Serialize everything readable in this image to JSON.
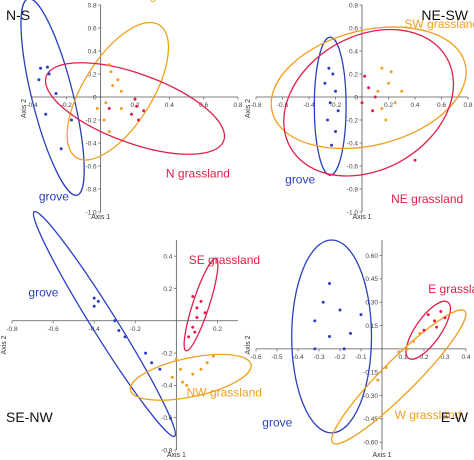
{
  "colors": {
    "grove": "#2b3fbf",
    "orange": "#f0a020",
    "red": "#e0204a",
    "axis": "#555555"
  },
  "chart_data": [
    {
      "type": "scatter",
      "title": "N-S",
      "xlabel": "Axis 1",
      "ylabel": "Axis 2",
      "xlim": [
        -0.4,
        0.8
      ],
      "ylim": [
        -1.0,
        0.8
      ],
      "xticks": [
        -0.4,
        -0.2,
        0.2,
        0.4,
        0.6,
        0.8
      ],
      "xtick_labels": [
        "-0.4",
        "-0.2",
        "0.2",
        "0.4",
        "0.6",
        "0.8"
      ],
      "yticks": [
        0.8,
        0.6,
        0.4,
        0.2,
        0,
        -0.2,
        -0.4,
        -0.6,
        -0.8,
        -1.0
      ],
      "ytick_labels": [
        "0.8",
        "0.6",
        "0.4",
        "0.2",
        "0",
        "-0.2",
        "-0.4",
        "-0.6",
        "-0.8",
        "-1.0"
      ],
      "series": [
        {
          "name": "grove",
          "color": "#2b3fbf",
          "points": [
            [
              -0.35,
              0.25
            ],
            [
              -0.31,
              0.26
            ],
            [
              -0.3,
              0.2
            ],
            [
              -0.36,
              0.15
            ],
            [
              -0.26,
              0.03
            ],
            [
              -0.32,
              -0.15
            ],
            [
              -0.23,
              -0.45
            ],
            [
              -0.17,
              -0.2
            ]
          ]
        },
        {
          "name": "S grassland",
          "color": "#f0a020",
          "points": [
            [
              0.05,
              0.28
            ],
            [
              0.06,
              0.22
            ],
            [
              0.1,
              0.15
            ],
            [
              0.07,
              0.1
            ],
            [
              0.12,
              0.05
            ],
            [
              0.03,
              -0.05
            ],
            [
              -0.02,
              -0.1
            ],
            [
              0.02,
              -0.2
            ],
            [
              0.05,
              -0.3
            ],
            [
              0.12,
              -0.1
            ]
          ]
        },
        {
          "name": "N grassland",
          "color": "#e0204a",
          "points": [
            [
              0.2,
              -0.02
            ],
            [
              0.21,
              -0.08
            ],
            [
              0.25,
              -0.12
            ],
            [
              0.18,
              -0.15
            ],
            [
              0.22,
              -0.2
            ],
            [
              0.05,
              -0.1
            ]
          ]
        }
      ],
      "ellipses": [
        {
          "series": "grove",
          "cx": -0.28,
          "cy": 0.0,
          "rx": 0.12,
          "ry": 0.88,
          "angle_deg": -14
        },
        {
          "series": "S grassland",
          "cx": 0.1,
          "cy": 0.05,
          "rx": 0.2,
          "ry": 0.68,
          "angle_deg": 32
        },
        {
          "series": "N grassland",
          "cx": 0.2,
          "cy": -0.1,
          "rx": 0.55,
          "ry": 0.3,
          "angle_deg": 20
        }
      ],
      "labels": [
        {
          "text": "S grassland",
          "color": "#f0a020",
          "x": 0.22,
          "y": 0.85
        },
        {
          "text": "N grassland",
          "color": "#e0204a",
          "x": 0.38,
          "y": -0.7
        },
        {
          "text": "grove",
          "color": "#2b3fbf",
          "x": -0.36,
          "y": -0.9
        }
      ]
    },
    {
      "type": "scatter",
      "title": "NE-SW",
      "xlabel": "Axis 1",
      "ylabel": "Axis 2",
      "xlim": [
        -0.8,
        0.8
      ],
      "ylim": [
        -1.0,
        0.8
      ],
      "xticks": [
        -0.8,
        -0.6,
        -0.4,
        -0.2,
        0.2,
        0.4,
        0.6,
        0.8
      ],
      "xtick_labels": [
        "-0.8",
        "-0.6",
        "-0.4",
        "-0.2",
        "0.2",
        "0.4",
        "0.6",
        "0.8"
      ],
      "yticks": [
        0.8,
        0.6,
        0.4,
        0.2,
        0,
        -0.2,
        -0.4,
        -0.6,
        -0.8,
        -1.0
      ],
      "ytick_labels": [
        "0.8",
        "0.6",
        "0.4",
        "0.2",
        "0",
        "-0.2",
        "-0.4",
        "-0.6",
        "-0.8",
        "-1.0"
      ],
      "series": [
        {
          "name": "grove",
          "color": "#2b3fbf",
          "points": [
            [
              -0.25,
              0.25
            ],
            [
              -0.22,
              0.2
            ],
            [
              -0.28,
              0.12
            ],
            [
              -0.2,
              0.05
            ],
            [
              -0.24,
              -0.05
            ],
            [
              -0.18,
              -0.12
            ],
            [
              -0.26,
              -0.2
            ],
            [
              -0.2,
              -0.3
            ],
            [
              -0.23,
              -0.42
            ]
          ]
        },
        {
          "name": "SW grassland",
          "color": "#f0a020",
          "points": [
            [
              0.15,
              0.25
            ],
            [
              0.22,
              0.22
            ],
            [
              0.2,
              0.12
            ],
            [
              0.12,
              0.05
            ],
            [
              0.3,
              0.05
            ],
            [
              0.25,
              -0.05
            ],
            [
              0.15,
              -0.1
            ],
            [
              0.18,
              -0.2
            ]
          ]
        },
        {
          "name": "NE grassland",
          "color": "#e0204a",
          "points": [
            [
              0.02,
              0.18
            ],
            [
              0.05,
              0.08
            ],
            [
              0.1,
              0.0
            ],
            [
              0.0,
              -0.05
            ],
            [
              0.08,
              -0.12
            ],
            [
              0.4,
              -0.55
            ]
          ]
        }
      ],
      "ellipses": [
        {
          "series": "grove",
          "cx": -0.24,
          "cy": -0.08,
          "rx": 0.12,
          "ry": 0.6,
          "angle_deg": 0
        },
        {
          "series": "SW grassland",
          "cx": 0.05,
          "cy": 0.08,
          "rx": 0.75,
          "ry": 0.5,
          "angle_deg": -14
        },
        {
          "series": "NE grassland",
          "cx": 0.05,
          "cy": -0.05,
          "rx": 0.68,
          "ry": 0.58,
          "angle_deg": -30
        }
      ],
      "labels": [
        {
          "text": "SW grassland",
          "color": "#f0a020",
          "x": 0.32,
          "y": 0.6
        },
        {
          "text": "NE grassland",
          "color": "#e0204a",
          "x": 0.22,
          "y": -0.92
        },
        {
          "text": "grove",
          "color": "#2b3fbf",
          "x": -0.58,
          "y": -0.75
        }
      ]
    },
    {
      "type": "scatter",
      "title": "SE-NW",
      "xlabel": "Axis 1",
      "ylabel": "Axis 2",
      "xlim": [
        -0.8,
        0.3
      ],
      "ylim": [
        -0.8,
        0.5
      ],
      "xticks": [
        -0.8,
        -0.6,
        -0.4,
        -0.2,
        0.2
      ],
      "xtick_labels": [
        "-0.8",
        "-0.6",
        "-0.4",
        "-0.2",
        "0.2"
      ],
      "yticks": [
        0.4,
        0.2,
        -0.2,
        -0.4,
        -0.6,
        -0.8
      ],
      "ytick_labels": [
        "0.4",
        "0.2",
        "-0.2",
        "-0.4",
        "-0.6",
        "-0.8"
      ],
      "series": [
        {
          "name": "grove",
          "color": "#2b3fbf",
          "points": [
            [
              -0.4,
              0.14
            ],
            [
              -0.38,
              0.12
            ],
            [
              -0.4,
              0.09
            ],
            [
              -0.3,
              0.0
            ],
            [
              -0.28,
              -0.06
            ],
            [
              -0.25,
              -0.1
            ],
            [
              -0.15,
              -0.2
            ],
            [
              -0.12,
              -0.26
            ],
            [
              -0.08,
              -0.3
            ]
          ]
        },
        {
          "name": "SE grassland",
          "color": "#e0204a",
          "points": [
            [
              0.08,
              0.15
            ],
            [
              0.12,
              0.12
            ],
            [
              0.1,
              0.08
            ],
            [
              0.14,
              0.05
            ],
            [
              0.1,
              0.02
            ],
            [
              0.08,
              -0.04
            ],
            [
              0.06,
              -0.1
            ],
            [
              0.09,
              -0.07
            ]
          ]
        },
        {
          "name": "NW grassland",
          "color": "#f0a020",
          "points": [
            [
              0.0,
              -0.24
            ],
            [
              0.02,
              -0.3
            ],
            [
              -0.02,
              -0.35
            ],
            [
              0.03,
              -0.38
            ],
            [
              0.08,
              -0.33
            ],
            [
              0.12,
              -0.3
            ],
            [
              0.15,
              -0.26
            ],
            [
              0.18,
              -0.22
            ],
            [
              0.05,
              -0.4
            ]
          ]
        }
      ],
      "ellipses": [
        {
          "series": "grove",
          "cx": -0.35,
          "cy": -0.02,
          "rx": 0.06,
          "ry": 0.82,
          "angle_deg": -32
        },
        {
          "series": "SE grassland",
          "cx": 0.12,
          "cy": 0.1,
          "rx": 0.04,
          "ry": 0.3,
          "angle_deg": 18
        },
        {
          "series": "NW grassland",
          "cx": 0.07,
          "cy": -0.35,
          "rx": 0.3,
          "ry": 0.12,
          "angle_deg": -12
        }
      ],
      "labels": [
        {
          "text": "SE grassland",
          "color": "#e0204a",
          "x": 0.06,
          "y": 0.35
        },
        {
          "text": "grove",
          "color": "#2b3fbf",
          "x": -0.72,
          "y": 0.15
        },
        {
          "text": "NW grassland",
          "color": "#f0a020",
          "x": 0.05,
          "y": -0.47
        }
      ]
    },
    {
      "type": "scatter",
      "title": "E-W",
      "xlabel": "Axis 1",
      "ylabel": "Axis 2",
      "xlim": [
        -0.6,
        0.4
      ],
      "ylim": [
        -0.65,
        0.7
      ],
      "xticks": [
        -0.6,
        -0.5,
        -0.4,
        -0.3,
        -0.2,
        -0.1,
        0.1,
        0.2,
        0.3,
        0.4
      ],
      "xtick_labels": [
        "-0.6",
        "-0.5",
        "-0.4",
        "-0.3",
        "-0.2",
        "-0.1",
        "0.1",
        "0.2",
        "0.3",
        "0.4"
      ],
      "yticks": [
        0.6,
        0.45,
        0.3,
        0.15,
        -0.15,
        -0.3,
        -0.45,
        -0.6
      ],
      "ytick_labels": [
        "0.60",
        "0.45",
        "0.30",
        "0.15",
        "-0.15",
        "-0.30",
        "-0.45",
        "-0.60"
      ],
      "series": [
        {
          "name": "grove",
          "color": "#2b3fbf",
          "points": [
            [
              -0.25,
              0.42
            ],
            [
              -0.28,
              0.3
            ],
            [
              -0.32,
              0.18
            ],
            [
              -0.2,
              0.25
            ],
            [
              -0.1,
              0.22
            ],
            [
              -0.15,
              0.1
            ],
            [
              -0.25,
              0.08
            ],
            [
              -0.18,
              0.0
            ],
            [
              -0.32,
              0.0
            ]
          ]
        },
        {
          "name": "E grassland",
          "color": "#e0204a",
          "points": [
            [
              0.22,
              0.22
            ],
            [
              0.25,
              0.18
            ],
            [
              0.28,
              0.24
            ],
            [
              0.2,
              0.12
            ],
            [
              0.26,
              0.14
            ],
            [
              0.3,
              0.2
            ]
          ]
        },
        {
          "name": "W grassland",
          "color": "#f0a020",
          "points": [
            [
              0.15,
              0.05
            ],
            [
              0.08,
              -0.02
            ],
            [
              0.02,
              -0.12
            ],
            [
              -0.02,
              -0.2
            ],
            [
              0.18,
              0.1
            ],
            [
              0.12,
              0.0
            ]
          ]
        }
      ],
      "ellipses": [
        {
          "series": "grove",
          "cx": -0.24,
          "cy": 0.08,
          "rx": 0.19,
          "ry": 0.62,
          "angle_deg": 0
        },
        {
          "series": "E grassland",
          "cx": 0.22,
          "cy": 0.12,
          "rx": 0.06,
          "ry": 0.22,
          "angle_deg": 35
        },
        {
          "series": "W grassland",
          "cx": 0.08,
          "cy": -0.18,
          "rx": 0.08,
          "ry": 0.6,
          "angle_deg": 45
        }
      ],
      "labels": [
        {
          "text": "E grassland",
          "color": "#e0204a",
          "x": 0.22,
          "y": 0.36
        },
        {
          "text": "W grassland",
          "color": "#f0a020",
          "x": 0.06,
          "y": -0.45
        },
        {
          "text": "grove",
          "color": "#2b3fbf",
          "x": -0.57,
          "y": -0.5
        }
      ]
    }
  ]
}
